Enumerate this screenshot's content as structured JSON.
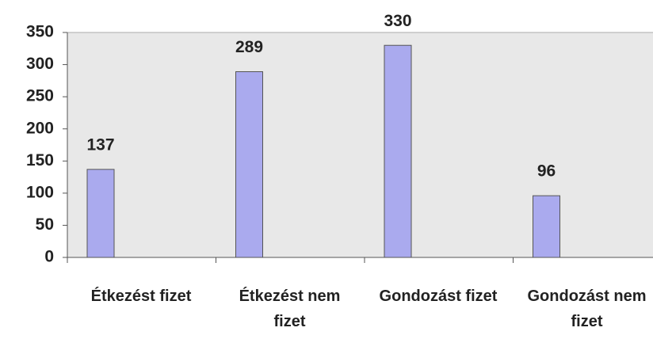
{
  "chart_data": {
    "type": "bar",
    "categories": [
      "Étkezést fizet",
      "Étkezést nem fizet",
      "Gondozást fizet",
      "Gondozást nem fizet"
    ],
    "values": [
      137,
      289,
      330,
      96
    ],
    "color": "#aaaaee",
    "ylim": [
      0,
      350
    ],
    "yticks": [
      0,
      50,
      100,
      150,
      200,
      250,
      300,
      350
    ],
    "grid": false
  }
}
